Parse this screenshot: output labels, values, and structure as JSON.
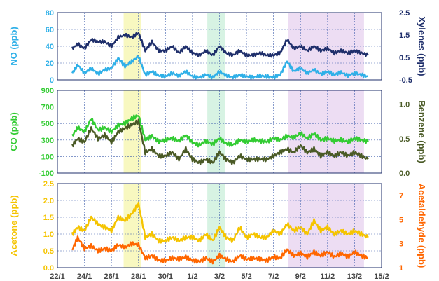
{
  "chart_data": [
    {
      "type": "line",
      "panel": "top",
      "x_ticks": [
        "22/1",
        "24/1",
        "26/1",
        "28/1",
        "30/1",
        "1/2",
        "3/2",
        "5/2",
        "7/2",
        "9/2",
        "11/2",
        "13/2",
        "15/2"
      ],
      "left_axis": {
        "label": "NO (ppb)",
        "ticks": [
          0,
          20,
          40,
          60,
          80
        ],
        "ylim": [
          0,
          80
        ],
        "color": "#2fb0e8"
      },
      "right_axis": {
        "label": "Xylenes (ppb)",
        "ticks": [
          "-0.5",
          "0.5",
          "1.5",
          "2.5"
        ],
        "ylim": [
          -0.5,
          2.5
        ],
        "color": "#1f2f6b"
      },
      "series": [
        {
          "axis": "left",
          "color": "#2fb0e8",
          "x": [
            23.1,
            23.5,
            24.0,
            24.5,
            25.0,
            25.5,
            26.0,
            26.5,
            27.0,
            27.5,
            28.0,
            28.5,
            29.0,
            29.5,
            30.0,
            30.5,
            31.0,
            31.5,
            32.0,
            32.5,
            33.0,
            33.5,
            34.0,
            34.5,
            35.0,
            35.5,
            36.0,
            36.5,
            37.0,
            37.5,
            38.0,
            38.5,
            39.0,
            39.5,
            40.0,
            40.5,
            41.0,
            41.5,
            42.0,
            42.5,
            43.0,
            43.5,
            44.0,
            44.5,
            45.0
          ],
          "values": [
            8,
            18,
            8,
            14,
            7,
            12,
            14,
            26,
            16,
            22,
            28,
            6,
            10,
            5,
            4,
            8,
            5,
            10,
            4,
            3,
            6,
            3,
            10,
            5,
            3,
            6,
            4,
            3,
            5,
            4,
            3,
            6,
            22,
            10,
            14,
            8,
            12,
            7,
            10,
            6,
            9,
            5,
            8,
            6,
            4
          ]
        },
        {
          "axis": "right",
          "color": "#1f2f6b",
          "x": [
            23.1,
            23.5,
            24.0,
            24.5,
            25.0,
            25.5,
            26.0,
            26.5,
            27.0,
            27.5,
            28.0,
            28.5,
            29.0,
            29.5,
            30.0,
            30.5,
            31.0,
            31.5,
            32.0,
            32.5,
            33.0,
            33.5,
            34.0,
            34.5,
            35.0,
            35.5,
            36.0,
            36.5,
            37.0,
            37.5,
            38.0,
            38.5,
            39.0,
            39.5,
            40.0,
            40.5,
            41.0,
            41.5,
            42.0,
            42.5,
            43.0,
            43.5,
            44.0,
            44.5,
            45.0
          ],
          "values": [
            0.9,
            1.1,
            0.9,
            1.3,
            1.2,
            1.2,
            1.0,
            1.4,
            1.5,
            1.4,
            1.6,
            0.8,
            1.2,
            0.8,
            0.8,
            1.0,
            0.7,
            1.0,
            0.7,
            0.6,
            0.8,
            0.6,
            1.0,
            0.7,
            0.6,
            0.8,
            0.6,
            0.6,
            0.7,
            0.6,
            0.6,
            0.7,
            1.3,
            0.9,
            1.0,
            0.8,
            1.0,
            0.8,
            0.9,
            0.7,
            0.8,
            0.7,
            0.8,
            0.7,
            0.6
          ]
        }
      ]
    },
    {
      "type": "line",
      "panel": "middle",
      "x_ticks": [
        "22/1",
        "24/1",
        "26/1",
        "28/1",
        "30/1",
        "1/2",
        "3/2",
        "5/2",
        "7/2",
        "9/2",
        "11/2",
        "13/2",
        "15/2"
      ],
      "left_axis": {
        "label": "CO (ppb)",
        "ticks": [
          -100,
          100,
          300,
          500,
          700,
          900
        ],
        "ylim": [
          -100,
          900
        ],
        "color": "#33cc33"
      },
      "right_axis": {
        "label": "Benzene (ppb)",
        "ticks": [
          "0.0",
          "0.5",
          "1.0"
        ],
        "ylim": [
          0,
          1.2
        ],
        "color": "#4a5a26"
      },
      "series": [
        {
          "axis": "left",
          "color": "#33cc33",
          "x": [
            23.1,
            23.5,
            24.0,
            24.5,
            25.0,
            25.5,
            26.0,
            26.5,
            27.0,
            27.5,
            28.0,
            28.5,
            29.0,
            29.5,
            30.0,
            30.5,
            31.0,
            31.5,
            32.0,
            32.5,
            33.0,
            33.5,
            34.0,
            34.5,
            35.0,
            35.5,
            36.0,
            36.5,
            37.0,
            37.5,
            38.0,
            38.5,
            39.0,
            39.5,
            40.0,
            40.5,
            41.0,
            41.5,
            42.0,
            42.5,
            43.0,
            43.5,
            44.0,
            44.5,
            45.0
          ],
          "values": [
            350,
            450,
            400,
            560,
            420,
            450,
            400,
            480,
            500,
            560,
            600,
            300,
            350,
            280,
            300,
            320,
            290,
            360,
            270,
            240,
            290,
            250,
            320,
            260,
            240,
            300,
            280,
            300,
            290,
            280,
            320,
            300,
            350,
            330,
            380,
            320,
            380,
            300,
            320,
            290,
            300,
            280,
            320,
            300,
            280
          ]
        },
        {
          "axis": "right",
          "color": "#4a5a26",
          "x": [
            23.1,
            23.5,
            24.0,
            24.5,
            25.0,
            25.5,
            26.0,
            26.5,
            27.0,
            27.5,
            28.0,
            28.5,
            29.0,
            29.5,
            30.0,
            30.5,
            31.0,
            31.5,
            32.0,
            32.5,
            33.0,
            33.5,
            34.0,
            34.5,
            35.0,
            35.5,
            36.0,
            36.5,
            37.0,
            37.5,
            38.0,
            38.5,
            39.0,
            39.5,
            40.0,
            40.5,
            41.0,
            41.5,
            42.0,
            42.5,
            43.0,
            43.5,
            44.0,
            44.5,
            45.0
          ],
          "values": [
            0.4,
            0.5,
            0.45,
            0.65,
            0.5,
            0.55,
            0.45,
            0.6,
            0.65,
            0.7,
            0.75,
            0.3,
            0.35,
            0.25,
            0.25,
            0.3,
            0.2,
            0.35,
            0.2,
            0.15,
            0.2,
            0.15,
            0.3,
            0.2,
            0.15,
            0.25,
            0.2,
            0.2,
            0.2,
            0.2,
            0.25,
            0.3,
            0.35,
            0.3,
            0.4,
            0.3,
            0.35,
            0.25,
            0.3,
            0.25,
            0.3,
            0.25,
            0.3,
            0.25,
            0.2
          ]
        }
      ]
    },
    {
      "type": "line",
      "panel": "bottom",
      "x_ticks": [
        "22/1",
        "24/1",
        "26/1",
        "28/1",
        "30/1",
        "1/2",
        "3/2",
        "5/2",
        "7/2",
        "9/2",
        "11/2",
        "13/2",
        "15/2"
      ],
      "left_axis": {
        "label": "Acetone (ppb)",
        "ticks": [
          "0.0",
          "0.5",
          "1.0",
          "1.5",
          "2.0",
          "2.5"
        ],
        "ylim": [
          0,
          2.5
        ],
        "color": "#f5c400"
      },
      "right_axis": {
        "label": "Acetaldehyde (ppb)",
        "ticks": [
          1,
          3,
          5,
          7
        ],
        "ylim": [
          1,
          8
        ],
        "color": "#ff6600"
      },
      "series": [
        {
          "axis": "left",
          "color": "#f5c400",
          "x": [
            23.1,
            23.5,
            24.0,
            24.5,
            25.0,
            25.5,
            26.0,
            26.5,
            27.0,
            27.5,
            28.0,
            28.5,
            29.0,
            29.5,
            30.0,
            30.5,
            31.0,
            31.5,
            32.0,
            32.5,
            33.0,
            33.5,
            34.0,
            34.5,
            35.0,
            35.5,
            36.0,
            36.5,
            37.0,
            37.5,
            38.0,
            38.5,
            39.0,
            39.5,
            40.0,
            40.5,
            41.0,
            41.5,
            42.0,
            42.5,
            43.0,
            43.5,
            44.0,
            44.5,
            45.0
          ],
          "values": [
            1.0,
            1.2,
            1.1,
            1.5,
            1.3,
            1.2,
            1.1,
            1.5,
            1.4,
            1.6,
            1.9,
            0.9,
            1.0,
            0.8,
            0.8,
            0.9,
            0.8,
            0.9,
            0.9,
            0.8,
            1.0,
            0.8,
            1.2,
            0.9,
            0.8,
            1.2,
            0.9,
            1.0,
            0.9,
            0.9,
            1.1,
            1.0,
            1.3,
            1.1,
            1.2,
            1.0,
            1.4,
            1.1,
            1.2,
            1.0,
            1.1,
            1.0,
            1.1,
            1.0,
            0.9
          ]
        },
        {
          "axis": "right",
          "color": "#ff6600",
          "x": [
            23.1,
            23.5,
            24.0,
            24.5,
            25.0,
            25.5,
            26.0,
            26.5,
            27.0,
            27.5,
            28.0,
            28.5,
            29.0,
            29.5,
            30.0,
            30.5,
            31.0,
            31.5,
            32.0,
            32.5,
            33.0,
            33.5,
            34.0,
            34.5,
            35.0,
            35.5,
            36.0,
            36.5,
            37.0,
            37.5,
            38.0,
            38.5,
            39.0,
            39.5,
            40.0,
            40.5,
            41.0,
            41.5,
            42.0,
            42.5,
            43.0,
            43.5,
            44.0,
            44.5,
            45.0
          ],
          "values": [
            2.5,
            3.5,
            2.6,
            2.8,
            2.4,
            2.6,
            2.4,
            2.9,
            2.7,
            3.0,
            2.9,
            1.8,
            2.0,
            1.6,
            1.6,
            1.8,
            1.7,
            1.9,
            1.6,
            1.5,
            1.8,
            1.5,
            2.0,
            1.7,
            1.5,
            2.0,
            1.7,
            1.8,
            1.7,
            1.6,
            1.9,
            1.8,
            2.5,
            2.0,
            2.2,
            1.9,
            2.3,
            2.0,
            2.3,
            1.9,
            2.2,
            1.9,
            2.3,
            2.0,
            1.8
          ]
        }
      ]
    }
  ],
  "highlight_bands": [
    {
      "from": 26.9,
      "to": 28.2,
      "color": "#f6f6b0"
    },
    {
      "from": 33.1,
      "to": 34.4,
      "color": "#cdf0dc"
    },
    {
      "from": 39.1,
      "to": 44.7,
      "color": "#e8d4f0"
    }
  ]
}
